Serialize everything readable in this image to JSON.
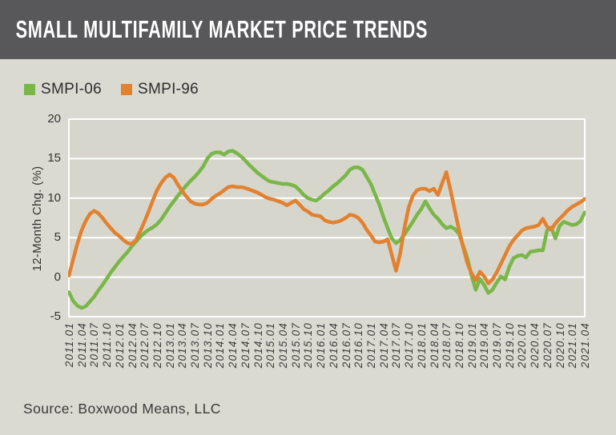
{
  "header": {
    "title": "SMALL MULTIFAMILY MARKET PRICE TRENDS"
  },
  "legend": [
    {
      "label": "SMPI-06",
      "color": "#7ab648"
    },
    {
      "label": "SMPI-96",
      "color": "#e2812f"
    }
  ],
  "source": {
    "text": "Source: Boxwood Means, LLC"
  },
  "colors": {
    "header_bg": "#58585a",
    "page_bg": "#dadad2",
    "plot_bg": "#d6d6cd",
    "gridline": "#ffffff",
    "smpi06": "#7ab648",
    "smpi96": "#e2812f",
    "text_dark": "#333333"
  },
  "chart_data": {
    "type": "line",
    "title": "SMALL MULTIFAMILY MARKET PRICE TRENDS",
    "xlabel": "",
    "ylabel": "12-Month Chg. (%)",
    "ylim": [
      -5,
      20
    ],
    "yticks": [
      20,
      15,
      10,
      5,
      0,
      -5
    ],
    "grid": true,
    "legend_position": "top-left",
    "x_frequency": "monthly",
    "x_start": "2011.01",
    "x_end": "2021.04",
    "x_tick_labels": [
      "2011.01",
      "2011.04",
      "2011.07",
      "2011.10",
      "2012.01",
      "2012.04",
      "2012.07",
      "2012.10",
      "2013.01",
      "2013.04",
      "2013.07",
      "2013.10",
      "2014.01",
      "2014.04",
      "2014.07",
      "2014.10",
      "2015.01",
      "2015.04",
      "2015.07",
      "2015.10",
      "2016.01",
      "2016.04",
      "2016.07",
      "2016.10",
      "2017.01",
      "2017.04",
      "2017.07",
      "2017.10",
      "2018.01",
      "2018.04",
      "2018.07",
      "2018.10",
      "2019.01",
      "2019.04",
      "2019.07",
      "2019.10",
      "2020.01",
      "2020.04",
      "2020.07",
      "2020.10",
      "2021.01",
      "2021.04"
    ],
    "series": [
      {
        "name": "SMPI-06",
        "color": "#7ab648",
        "values": [
          -1.9,
          -3.0,
          -3.6,
          -3.9,
          -3.7,
          -3.1,
          -2.5,
          -1.7,
          -1.0,
          -0.2,
          0.6,
          1.3,
          2.0,
          2.6,
          3.2,
          3.9,
          4.5,
          5.1,
          5.6,
          6.0,
          6.3,
          6.7,
          7.3,
          8.1,
          8.9,
          9.6,
          10.3,
          11.0,
          11.6,
          12.2,
          12.7,
          13.3,
          14.0,
          15.0,
          15.6,
          15.8,
          15.8,
          15.5,
          15.9,
          16.0,
          15.7,
          15.3,
          14.8,
          14.2,
          13.7,
          13.2,
          12.8,
          12.4,
          12.1,
          12.0,
          11.9,
          11.8,
          11.8,
          11.7,
          11.5,
          11.0,
          10.4,
          10.0,
          9.8,
          9.7,
          10.1,
          10.6,
          11.0,
          11.5,
          11.9,
          12.4,
          12.9,
          13.6,
          13.9,
          13.9,
          13.6,
          12.7,
          11.8,
          10.5,
          9.2,
          7.6,
          6.2,
          4.9,
          4.3,
          4.7,
          5.4,
          6.2,
          7.0,
          7.9,
          8.6,
          9.6,
          8.7,
          7.9,
          7.4,
          6.7,
          6.2,
          6.4,
          6.1,
          5.5,
          4.0,
          2.4,
          0.2,
          -1.6,
          -0.2,
          -1.0,
          -2.0,
          -1.6,
          -0.7,
          0.1,
          -0.3,
          1.3,
          2.4,
          2.7,
          2.8,
          2.5,
          3.2,
          3.3,
          3.4,
          3.4,
          5.9,
          6.3,
          4.9,
          6.5,
          7.0,
          6.8,
          6.6,
          6.7,
          7.1,
          8.2
        ]
      },
      {
        "name": "SMPI-96",
        "color": "#e2812f",
        "values": [
          0.2,
          2.2,
          4.2,
          5.9,
          7.1,
          8.0,
          8.4,
          8.1,
          7.5,
          6.8,
          6.2,
          5.6,
          5.2,
          4.7,
          4.3,
          4.2,
          4.7,
          5.8,
          7.0,
          8.3,
          9.7,
          11.0,
          11.9,
          12.6,
          13.0,
          12.6,
          11.7,
          10.9,
          10.2,
          9.6,
          9.3,
          9.2,
          9.2,
          9.4,
          9.9,
          10.3,
          10.6,
          11.0,
          11.4,
          11.5,
          11.4,
          11.4,
          11.3,
          11.1,
          10.9,
          10.7,
          10.4,
          10.1,
          9.9,
          9.8,
          9.6,
          9.4,
          9.1,
          9.4,
          9.7,
          9.2,
          8.6,
          8.3,
          7.9,
          7.8,
          7.7,
          7.2,
          7.0,
          6.9,
          7.0,
          7.2,
          7.5,
          7.9,
          7.8,
          7.5,
          6.9,
          6.0,
          5.3,
          4.5,
          4.4,
          4.5,
          4.8,
          2.8,
          0.8,
          3.0,
          6.2,
          8.8,
          10.3,
          11.0,
          11.2,
          11.2,
          10.9,
          11.2,
          10.4,
          11.9,
          13.3,
          11.0,
          8.5,
          6.0,
          3.8,
          1.8,
          0.5,
          -0.4,
          0.7,
          0.1,
          -0.8,
          -0.3,
          0.6,
          1.7,
          2.8,
          3.9,
          4.7,
          5.3,
          5.9,
          6.2,
          6.3,
          6.4,
          6.6,
          7.4,
          6.4,
          6.0,
          6.8,
          7.4,
          7.9,
          8.5,
          8.9,
          9.2,
          9.5,
          9.9
        ]
      }
    ]
  }
}
